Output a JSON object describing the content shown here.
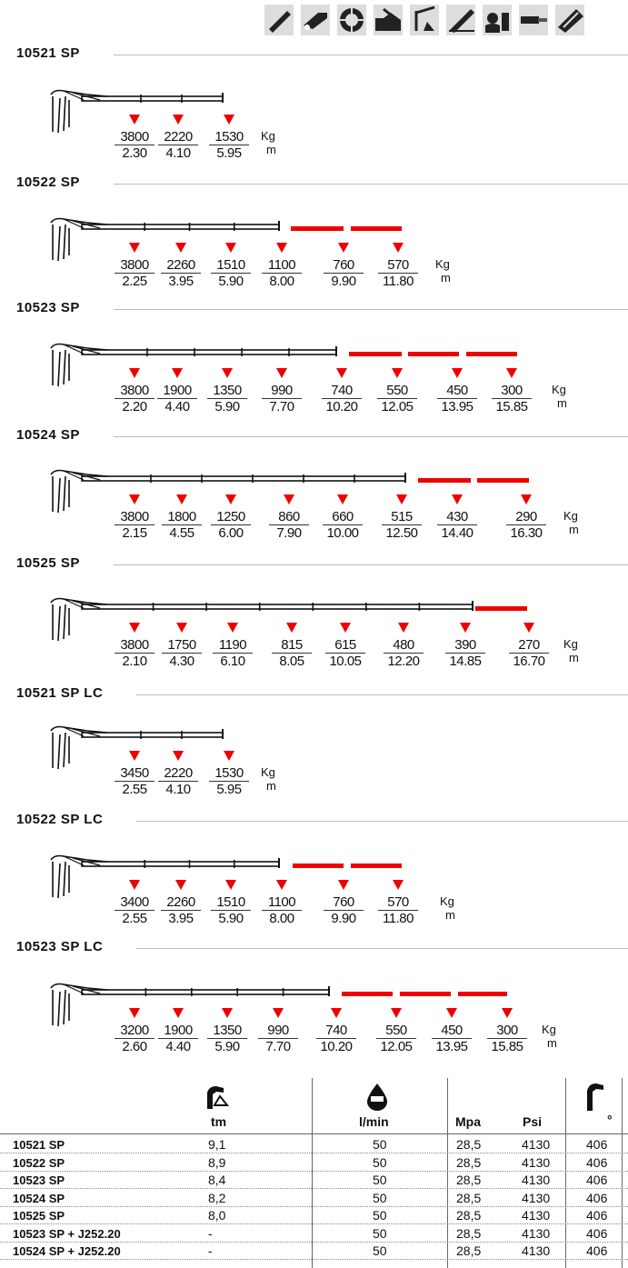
{
  "icons": [
    "crane-boom-icon",
    "extension-boom-icon",
    "rotation-icon",
    "hydraulic-icon",
    "stabilizer-icon",
    "boom-angle-icon",
    "operator-icon",
    "cylinder-icon",
    "jib-icon"
  ],
  "units": {
    "kg": "Kg",
    "m": "m"
  },
  "models": [
    {
      "name": "10521 SP",
      "points": [
        {
          "kg": "3800",
          "m": "2.30"
        },
        {
          "kg": "2220",
          "m": "4.10"
        },
        {
          "kg": "1530",
          "m": "5.95"
        }
      ]
    },
    {
      "name": "10522 SP",
      "points": [
        {
          "kg": "3800",
          "m": "2.25"
        },
        {
          "kg": "2260",
          "m": "3.95"
        },
        {
          "kg": "1510",
          "m": "5.90"
        },
        {
          "kg": "1100",
          "m": "8.00"
        },
        {
          "kg": "760",
          "m": "9.90"
        },
        {
          "kg": "570",
          "m": "11.80"
        }
      ]
    },
    {
      "name": "10523 SP",
      "points": [
        {
          "kg": "3800",
          "m": "2.20"
        },
        {
          "kg": "1900",
          "m": "4.40"
        },
        {
          "kg": "1350",
          "m": "5.90"
        },
        {
          "kg": "990",
          "m": "7.70"
        },
        {
          "kg": "740",
          "m": "10.20"
        },
        {
          "kg": "550",
          "m": "12.05"
        },
        {
          "kg": "450",
          "m": "13.95"
        },
        {
          "kg": "300",
          "m": "15.85"
        }
      ]
    },
    {
      "name": "10524 SP",
      "points": [
        {
          "kg": "3800",
          "m": "2.15"
        },
        {
          "kg": "1800",
          "m": "4.55"
        },
        {
          "kg": "1250",
          "m": "6.00"
        },
        {
          "kg": "860",
          "m": "7.90"
        },
        {
          "kg": "660",
          "m": "10.00"
        },
        {
          "kg": "515",
          "m": "12.50"
        },
        {
          "kg": "430",
          "m": "14.40"
        },
        {
          "kg": "290",
          "m": "16.30"
        }
      ]
    },
    {
      "name": "10525 SP",
      "points": [
        {
          "kg": "3800",
          "m": "2.10"
        },
        {
          "kg": "1750",
          "m": "4.30"
        },
        {
          "kg": "1190",
          "m": "6.10"
        },
        {
          "kg": "815",
          "m": "8.05"
        },
        {
          "kg": "615",
          "m": "10.05"
        },
        {
          "kg": "480",
          "m": "12.20"
        },
        {
          "kg": "390",
          "m": "14.85"
        },
        {
          "kg": "270",
          "m": "16.70"
        }
      ]
    },
    {
      "name": "10521 SP LC",
      "points": [
        {
          "kg": "3450",
          "m": "2.55"
        },
        {
          "kg": "2220",
          "m": "4.10"
        },
        {
          "kg": "1530",
          "m": "5.95"
        }
      ]
    },
    {
      "name": "10522 SP LC",
      "points": [
        {
          "kg": "3400",
          "m": "2.55"
        },
        {
          "kg": "2260",
          "m": "3.95"
        },
        {
          "kg": "1510",
          "m": "5.90"
        },
        {
          "kg": "1100",
          "m": "8.00"
        },
        {
          "kg": "760",
          "m": "9.90"
        },
        {
          "kg": "570",
          "m": "11.80"
        }
      ]
    },
    {
      "name": "10523 SP LC",
      "points": [
        {
          "kg": "3200",
          "m": "2.60"
        },
        {
          "kg": "1900",
          "m": "4.40"
        },
        {
          "kg": "1350",
          "m": "5.90"
        },
        {
          "kg": "990",
          "m": "7.70"
        },
        {
          "kg": "740",
          "m": "10.20"
        },
        {
          "kg": "550",
          "m": "12.05"
        },
        {
          "kg": "450",
          "m": "13.95"
        },
        {
          "kg": "300",
          "m": "15.85"
        }
      ]
    }
  ],
  "table": {
    "headers": {
      "tm": "tm",
      "lmin": "l/min",
      "mpa": "Mpa",
      "psi": "Psi",
      "deg": "°"
    },
    "rows": [
      {
        "name": "10521 SP",
        "tm": "9,1",
        "lmin": "50",
        "mpa": "28,5",
        "psi": "4130",
        "deg": "406"
      },
      {
        "name": "10522 SP",
        "tm": "8,9",
        "lmin": "50",
        "mpa": "28,5",
        "psi": "4130",
        "deg": "406"
      },
      {
        "name": "10523 SP",
        "tm": "8,4",
        "lmin": "50",
        "mpa": "28,5",
        "psi": "4130",
        "deg": "406"
      },
      {
        "name": "10524 SP",
        "tm": "8,2",
        "lmin": "50",
        "mpa": "28,5",
        "psi": "4130",
        "deg": "406"
      },
      {
        "name": "10525 SP",
        "tm": "8,0",
        "lmin": "50",
        "mpa": "28,5",
        "psi": "4130",
        "deg": "406"
      },
      {
        "name": "10523 SP + J252.20",
        "tm": "-",
        "lmin": "50",
        "mpa": "28,5",
        "psi": "4130",
        "deg": "406"
      },
      {
        "name": "10524 SP + J252.20",
        "tm": "-",
        "lmin": "50",
        "mpa": "28,5",
        "psi": "4130",
        "deg": "406"
      }
    ]
  }
}
